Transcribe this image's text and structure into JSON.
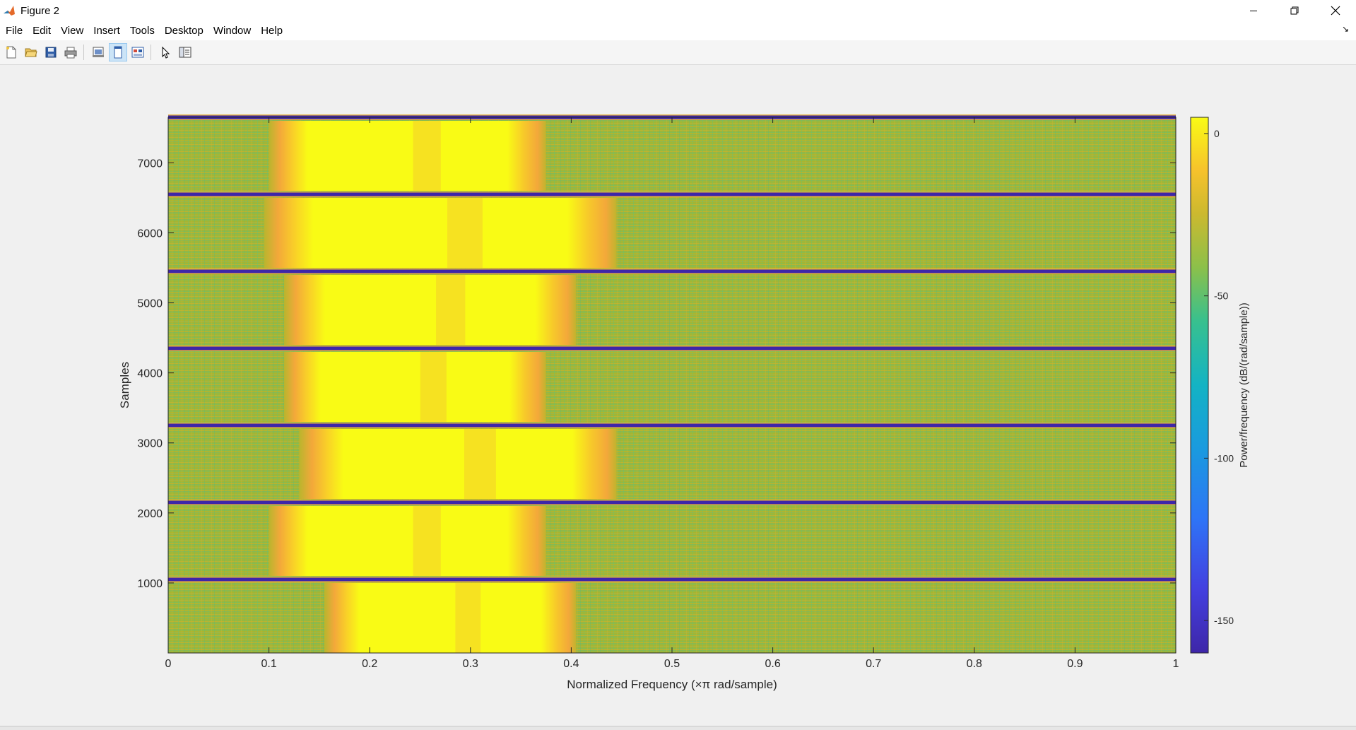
{
  "window": {
    "title": "Figure 2"
  },
  "menu": [
    "File",
    "Edit",
    "View",
    "Insert",
    "Tools",
    "Desktop",
    "Window",
    "Help"
  ],
  "toolbar": {
    "buttons": [
      "new-figure-icon",
      "open-file-icon",
      "save-icon",
      "print-icon",
      "print-preview-icon",
      "dock-figure-icon",
      "link-plot-icon",
      "edit-plot-icon",
      "property-inspector-icon"
    ],
    "active": [
      "dock-figure-icon"
    ]
  },
  "chart_data": {
    "type": "heatmap",
    "title": "",
    "xlabel": "Normalized Frequency  (×π rad/sample)",
    "ylabel": "Samples",
    "xlim": [
      0,
      1
    ],
    "ylim": [
      0,
      7650
    ],
    "x_ticks": [
      "0",
      "0.1",
      "0.2",
      "0.3",
      "0.4",
      "0.5",
      "0.6",
      "0.7",
      "0.8",
      "0.9",
      "1"
    ],
    "y_ticks": [
      "1000",
      "2000",
      "3000",
      "4000",
      "5000",
      "6000",
      "7000"
    ],
    "colorbar": {
      "label": "Power/frequency (dB/(rad/sample))",
      "ticks": [
        "0",
        "-50",
        "-100",
        "-150"
      ],
      "range": [
        -160,
        5
      ],
      "colormap": "parula"
    },
    "segments": [
      {
        "y_range": [
          0,
          1000
        ],
        "band": [
          0.155,
          0.405
        ]
      },
      {
        "y_range": [
          1100,
          2100
        ],
        "band": [
          0.1,
          0.375
        ]
      },
      {
        "y_range": [
          2200,
          3200
        ],
        "band": [
          0.13,
          0.445
        ]
      },
      {
        "y_range": [
          3300,
          4300
        ],
        "band": [
          0.115,
          0.375
        ]
      },
      {
        "y_range": [
          4400,
          5400
        ],
        "band": [
          0.115,
          0.405
        ]
      },
      {
        "y_range": [
          5500,
          6500
        ],
        "band": [
          0.095,
          0.445
        ]
      },
      {
        "y_range": [
          6600,
          7600
        ],
        "band": [
          0.1,
          0.375
        ]
      }
    ],
    "separator_rows": [
      1050,
      2150,
      3250,
      4350,
      5450,
      6550,
      7650
    ],
    "grid": false
  },
  "colors": {
    "parula_yellow": "#f9fb15",
    "parula_orange": "#f5b53a",
    "parula_green": "#a9b42e",
    "parula_teal": "#49b69a",
    "parula_dark": "#3e26a8"
  }
}
